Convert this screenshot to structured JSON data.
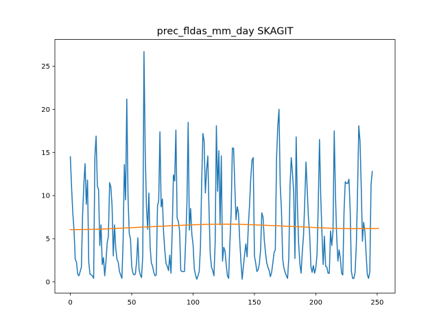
{
  "chart_data": {
    "type": "line",
    "title": "prec_fldas_mm_day SKAGIT",
    "xlabel": "",
    "ylabel": "",
    "xlim": [
      -12.6,
      264.6
    ],
    "ylim": [
      -1.3,
      28.1
    ],
    "x_ticks": [
      0,
      50,
      100,
      150,
      200,
      250
    ],
    "x_tick_labels": [
      "0",
      "50",
      "100",
      "150",
      "200",
      "250"
    ],
    "y_ticks": [
      0,
      5,
      10,
      15,
      20,
      25
    ],
    "y_tick_labels": [
      "0",
      "5",
      "10",
      "15",
      "20",
      "25"
    ],
    "grid": false,
    "legend": "none",
    "series": [
      {
        "color": "#1f77b4",
        "x_start": 0,
        "x_step": 1,
        "values": [
          14.5,
          11.0,
          8.0,
          6.0,
          2.6,
          2.3,
          0.9,
          0.7,
          1.2,
          1.7,
          7.8,
          11.3,
          13.7,
          9.0,
          11.8,
          2.3,
          0.9,
          0.8,
          0.7,
          0.4,
          14.5,
          16.9,
          11.1,
          10.7,
          4.2,
          6.6,
          2.0,
          2.8,
          0.7,
          2.3,
          4.5,
          5.3,
          11.5,
          11.0,
          8.8,
          3.0,
          6.6,
          3.9,
          2.6,
          2.3,
          1.2,
          0.8,
          0.4,
          4.7,
          13.6,
          9.5,
          21.2,
          9.9,
          5.6,
          5.0,
          1.8,
          1.0,
          0.8,
          0.9,
          2.4,
          5.1,
          1.4,
          0.8,
          0.5,
          3.0,
          26.7,
          15.2,
          8.8,
          6.1,
          10.3,
          4.1,
          2.2,
          1.8,
          1.1,
          0.7,
          0.8,
          8.8,
          9.4,
          17.4,
          8.7,
          9.6,
          5.6,
          3.6,
          2.1,
          1.8,
          1.3,
          3.1,
          1.0,
          5.9,
          12.4,
          11.7,
          17.6,
          7.4,
          7.0,
          5.9,
          1.3,
          1.2,
          1.2,
          1.2,
          4.9,
          9.1,
          18.5,
          6.0,
          8.5,
          5.5,
          4.3,
          1.5,
          0.8,
          0.3,
          0.7,
          1.2,
          4.0,
          11.4,
          17.2,
          16.3,
          10.3,
          12.9,
          14.6,
          8.3,
          3.2,
          1.7,
          1.3,
          0.7,
          4.6,
          18.1,
          10.5,
          15.2,
          6.6,
          14.6,
          2.4,
          4.0,
          3.6,
          2.0,
          0.7,
          0.4,
          4.6,
          7.9,
          15.5,
          15.5,
          11.1,
          7.2,
          8.7,
          8.0,
          4.9,
          2.3,
          0.3,
          1.8,
          3.2,
          4.4,
          2.9,
          6.4,
          8.9,
          12.0,
          14.1,
          14.4,
          3.0,
          2.2,
          1.2,
          1.4,
          2.1,
          3.7,
          8.0,
          7.5,
          4.9,
          3.4,
          2.2,
          1.7,
          1.3,
          0.6,
          1.1,
          2.2,
          3.4,
          3.7,
          14.3,
          18.0,
          20.0,
          11.2,
          8.4,
          2.7,
          1.6,
          1.1,
          0.7,
          0.4,
          2.8,
          11.2,
          14.4,
          12.6,
          10.3,
          2.7,
          16.8,
          8.9,
          4.5,
          2.1,
          1.0,
          3.5,
          5.4,
          9.4,
          13.9,
          10.7,
          7.4,
          5.5,
          1.8,
          1.1,
          1.9,
          1.0,
          1.6,
          3.2,
          9.0,
          16.5,
          10.0,
          5.6,
          2.0,
          5.3,
          1.8,
          1.7,
          1.0,
          1.0,
          5.9,
          4.2,
          5.9,
          17.5,
          10.1,
          5.3,
          2.4,
          3.7,
          2.7,
          1.0,
          0.8,
          8.2,
          11.6,
          11.4,
          11.4,
          11.9,
          8.3,
          1.2,
          0.4,
          0.4,
          1.1,
          4.2,
          10.4,
          18.1,
          16.3,
          11.1,
          4.7,
          6.9,
          5.8,
          3.2,
          0.8,
          0.4,
          1.2,
          11.3,
          12.8
        ]
      },
      {
        "color": "#ff7f0e",
        "x": [
          0,
          10,
          20,
          30,
          40,
          50,
          60,
          70,
          80,
          90,
          100,
          110,
          120,
          130,
          140,
          150,
          160,
          170,
          180,
          190,
          200,
          210,
          220,
          230,
          240,
          251
        ],
        "values": [
          6.05,
          6.06,
          6.09,
          6.14,
          6.21,
          6.28,
          6.35,
          6.42,
          6.49,
          6.55,
          6.61,
          6.66,
          6.68,
          6.69,
          6.66,
          6.61,
          6.55,
          6.49,
          6.42,
          6.36,
          6.29,
          6.22,
          6.18,
          6.16,
          6.17,
          6.18
        ]
      }
    ]
  }
}
